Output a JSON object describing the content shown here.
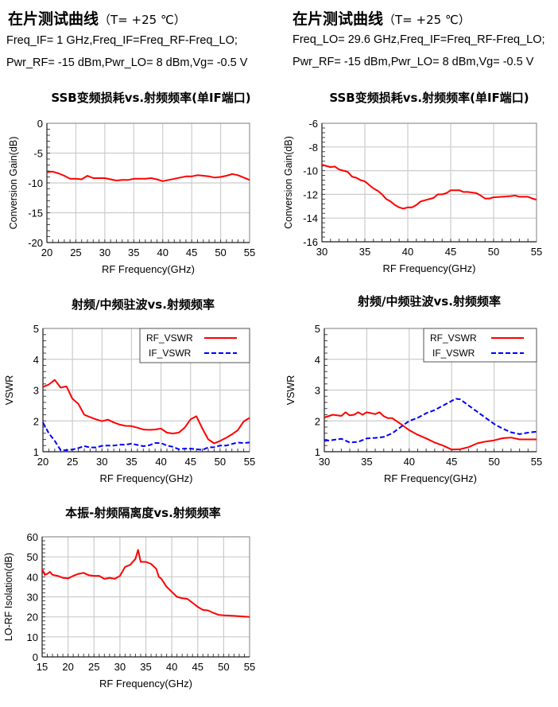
{
  "header_left": {
    "title": "在片测试曲线",
    "temp": "（T= +25 ℃）",
    "line1": "Freq_IF= 1 GHz,Freq_IF=Freq_RF-Freq_LO;",
    "line2": "Pwr_RF= -15 dBm,Pwr_LO= 8 dBm,Vg= -0.5 V"
  },
  "header_right": {
    "title": "在片测试曲线",
    "temp": "（T= +25 ℃）",
    "line1": "Freq_LO= 29.6 GHz,Freq_IF=Freq_RF-Freq_LO;",
    "line2": "Pwr_RF= -15 dBm,Pwr_LO= 8 dBm,Vg= -0.5 V"
  },
  "colors": {
    "rf": "#ff0000",
    "if": "#0000ff",
    "grid": "#cccccc"
  },
  "chart_data": [
    {
      "type": "line",
      "title": "SSB变频损耗vs.射频频率(单IF端口)",
      "xlabel": "RF Frequency(GHz)",
      "ylabel": "Conversion Gain(dB)",
      "xlim": [
        20,
        55
      ],
      "ylim": [
        -20,
        0
      ],
      "xticks": [
        20,
        25,
        30,
        35,
        40,
        45,
        50,
        55
      ],
      "yticks": [
        -20,
        -15,
        -10,
        -5,
        0
      ],
      "grid": true,
      "legend": null,
      "series": [
        {
          "name": "Conversion Gain",
          "color": "#ff0000",
          "dash": false,
          "x": [
            20,
            21,
            22,
            23,
            24,
            25,
            26,
            27,
            28,
            29,
            30,
            31,
            32,
            33,
            34,
            35,
            36,
            37,
            38,
            39,
            40,
            41,
            42,
            43,
            44,
            45,
            46,
            47,
            48,
            49,
            50,
            51,
            52,
            53,
            54,
            55
          ],
          "y": [
            -8.2,
            -8.1,
            -8.4,
            -8.8,
            -9.3,
            -9.3,
            -9.4,
            -8.8,
            -9.2,
            -9.2,
            -9.2,
            -9.4,
            -9.6,
            -9.5,
            -9.5,
            -9.3,
            -9.3,
            -9.3,
            -9.2,
            -9.4,
            -9.7,
            -9.5,
            -9.3,
            -9.1,
            -8.9,
            -8.9,
            -8.7,
            -8.8,
            -8.9,
            -9.1,
            -9.0,
            -8.8,
            -8.5,
            -8.7,
            -9.1,
            -9.5
          ]
        }
      ]
    },
    {
      "type": "line",
      "title": "SSB变频损耗vs.射频频率(单IF端口)",
      "xlabel": "RF Frequency(GHz)",
      "ylabel": "Conversion Gain(dB)",
      "xlim": [
        30,
        55
      ],
      "ylim": [
        -16,
        -6
      ],
      "xticks": [
        30,
        35,
        40,
        45,
        50,
        55
      ],
      "yticks": [
        -16,
        -14,
        -12,
        -10,
        -8,
        -6
      ],
      "grid": true,
      "legend": null,
      "series": [
        {
          "name": "Conversion Gain",
          "color": "#ff0000",
          "dash": false,
          "x": [
            30,
            31,
            31.5,
            32,
            33,
            33.5,
            34,
            34.5,
            35,
            35.5,
            36,
            36.5,
            37,
            37.5,
            38,
            38.5,
            39,
            39.5,
            40,
            40.5,
            41,
            41.5,
            42,
            43,
            43.5,
            44,
            44.5,
            45,
            46,
            46.5,
            47,
            48,
            48.5,
            49,
            49.5,
            50,
            51,
            52,
            52.5,
            53,
            54,
            54.5,
            55
          ],
          "y": [
            -9.5,
            -9.7,
            -9.65,
            -9.9,
            -10.1,
            -10.5,
            -10.6,
            -10.8,
            -10.9,
            -11.2,
            -11.5,
            -11.7,
            -12.0,
            -12.4,
            -12.6,
            -12.9,
            -13.1,
            -13.2,
            -13.1,
            -13.1,
            -12.9,
            -12.6,
            -12.5,
            -12.3,
            -12.0,
            -12.0,
            -11.9,
            -11.65,
            -11.65,
            -11.8,
            -11.8,
            -11.9,
            -12.1,
            -12.35,
            -12.35,
            -12.25,
            -12.2,
            -12.15,
            -12.1,
            -12.2,
            -12.2,
            -12.35,
            -12.45
          ]
        }
      ]
    },
    {
      "type": "line",
      "title": "射频/中频驻波vs.射频频率",
      "xlabel": "RF Frequency(GHz)",
      "ylabel": "VSWR",
      "xlim": [
        20,
        55
      ],
      "ylim": [
        1,
        5
      ],
      "xticks": [
        20,
        25,
        30,
        35,
        40,
        45,
        50,
        55
      ],
      "yticks": [
        1,
        2,
        3,
        4,
        5
      ],
      "grid": true,
      "legend": "top-right",
      "series": [
        {
          "name": "RF_VSWR",
          "color": "#ff0000",
          "dash": false,
          "x": [
            20,
            21,
            22,
            23,
            24,
            25,
            26,
            27,
            28,
            29,
            30,
            31,
            32,
            33,
            34,
            35,
            36,
            37,
            38,
            39,
            40,
            41,
            42,
            43,
            44,
            45,
            46,
            47,
            48,
            49,
            50,
            51,
            52,
            53,
            54,
            55
          ],
          "y": [
            3.1,
            3.18,
            3.33,
            3.08,
            3.12,
            2.72,
            2.55,
            2.2,
            2.12,
            2.05,
            1.99,
            2.04,
            1.95,
            1.88,
            1.84,
            1.83,
            1.78,
            1.72,
            1.71,
            1.72,
            1.75,
            1.62,
            1.59,
            1.62,
            1.78,
            2.05,
            2.15,
            1.75,
            1.4,
            1.27,
            1.35,
            1.45,
            1.56,
            1.7,
            1.98,
            2.1
          ]
        },
        {
          "name": "IF_VSWR",
          "color": "#0000ff",
          "dash": true,
          "x": [
            20,
            21,
            22,
            23,
            24,
            25,
            26,
            27,
            28,
            29,
            30,
            31,
            32,
            33,
            34,
            35,
            36,
            37,
            38,
            39,
            40,
            41,
            42,
            43,
            44,
            45,
            46,
            47,
            48,
            49,
            50,
            51,
            52,
            53,
            54,
            55
          ],
          "y": [
            1.95,
            1.6,
            1.35,
            1.05,
            1.05,
            1.07,
            1.12,
            1.18,
            1.14,
            1.14,
            1.19,
            1.2,
            1.2,
            1.23,
            1.23,
            1.26,
            1.22,
            1.18,
            1.21,
            1.28,
            1.28,
            1.2,
            1.16,
            1.08,
            1.1,
            1.1,
            1.08,
            1.06,
            1.14,
            1.15,
            1.2,
            1.2,
            1.25,
            1.3,
            1.28,
            1.3
          ]
        }
      ]
    },
    {
      "type": "line",
      "title": "射频/中频驻波vs.射频频率",
      "xlabel": "RF Frequency(GHz)",
      "ylabel": "VSWR",
      "xlim": [
        30,
        55
      ],
      "ylim": [
        1,
        5
      ],
      "xticks": [
        30,
        35,
        40,
        45,
        50,
        55
      ],
      "yticks": [
        1,
        2,
        3,
        4,
        5
      ],
      "grid": true,
      "legend": "top-right",
      "series": [
        {
          "name": "RF_VSWR",
          "color": "#ff0000",
          "dash": false,
          "x": [
            30,
            31,
            32,
            32.5,
            33,
            33.5,
            34,
            34.5,
            35,
            36,
            36.5,
            37,
            37.5,
            38,
            39,
            40,
            41,
            42,
            43,
            44,
            45,
            46,
            47,
            48,
            49,
            50,
            51,
            52,
            53,
            54,
            55
          ],
          "y": [
            2.11,
            2.2,
            2.16,
            2.28,
            2.18,
            2.2,
            2.28,
            2.2,
            2.28,
            2.22,
            2.28,
            2.15,
            2.09,
            2.09,
            1.9,
            1.7,
            1.55,
            1.43,
            1.3,
            1.2,
            1.07,
            1.08,
            1.15,
            1.27,
            1.33,
            1.37,
            1.44,
            1.46,
            1.4,
            1.4,
            1.4
          ]
        },
        {
          "name": "IF_VSWR",
          "color": "#0000ff",
          "dash": true,
          "x": [
            30,
            31,
            32,
            33,
            34,
            35,
            36,
            37,
            38,
            39,
            40,
            41,
            42,
            43,
            44,
            45,
            45.5,
            46,
            47,
            48,
            49,
            50,
            51,
            52,
            53,
            54,
            55
          ],
          "y": [
            1.35,
            1.38,
            1.42,
            1.3,
            1.32,
            1.43,
            1.45,
            1.48,
            1.6,
            1.8,
            2.0,
            2.1,
            2.25,
            2.35,
            2.5,
            2.65,
            2.72,
            2.7,
            2.5,
            2.3,
            2.1,
            1.9,
            1.75,
            1.63,
            1.57,
            1.62,
            1.65
          ]
        }
      ]
    },
    {
      "type": "line",
      "title": "本振-射频隔离度vs.射频频率",
      "xlabel": "RF Frequency(GHz)",
      "ylabel": "LO-RF Isolation(dB)",
      "xlim": [
        15,
        55
      ],
      "ylim": [
        0,
        60
      ],
      "xticks": [
        15,
        20,
        25,
        30,
        35,
        40,
        45,
        50,
        55
      ],
      "yticks": [
        0,
        10,
        20,
        30,
        40,
        50,
        60
      ],
      "grid": true,
      "legend": null,
      "series": [
        {
          "name": "LO-RF Isolation",
          "color": "#ff0000",
          "dash": false,
          "x": [
            15,
            15.5,
            16,
            16.5,
            17,
            18,
            19,
            20,
            21,
            22,
            23,
            24,
            25,
            26,
            27,
            28,
            29,
            30,
            31,
            32,
            33,
            33.5,
            34,
            35,
            36,
            37,
            37.5,
            38,
            39,
            40,
            41,
            42,
            43,
            44,
            45,
            46,
            47,
            48,
            49,
            50,
            52,
            53,
            55
          ],
          "y": [
            44,
            41,
            41.5,
            42.5,
            41,
            40.5,
            39.5,
            39.2,
            40.5,
            41.5,
            42,
            40.8,
            40.5,
            40.5,
            39,
            39.5,
            39,
            40.5,
            45,
            46,
            49,
            53.5,
            47.5,
            47.5,
            46.5,
            44,
            40,
            39,
            35,
            32.5,
            30,
            29.3,
            29,
            27,
            25,
            23.5,
            23.2,
            22,
            21,
            20.8,
            20.5,
            20.3,
            20
          ]
        }
      ]
    }
  ]
}
